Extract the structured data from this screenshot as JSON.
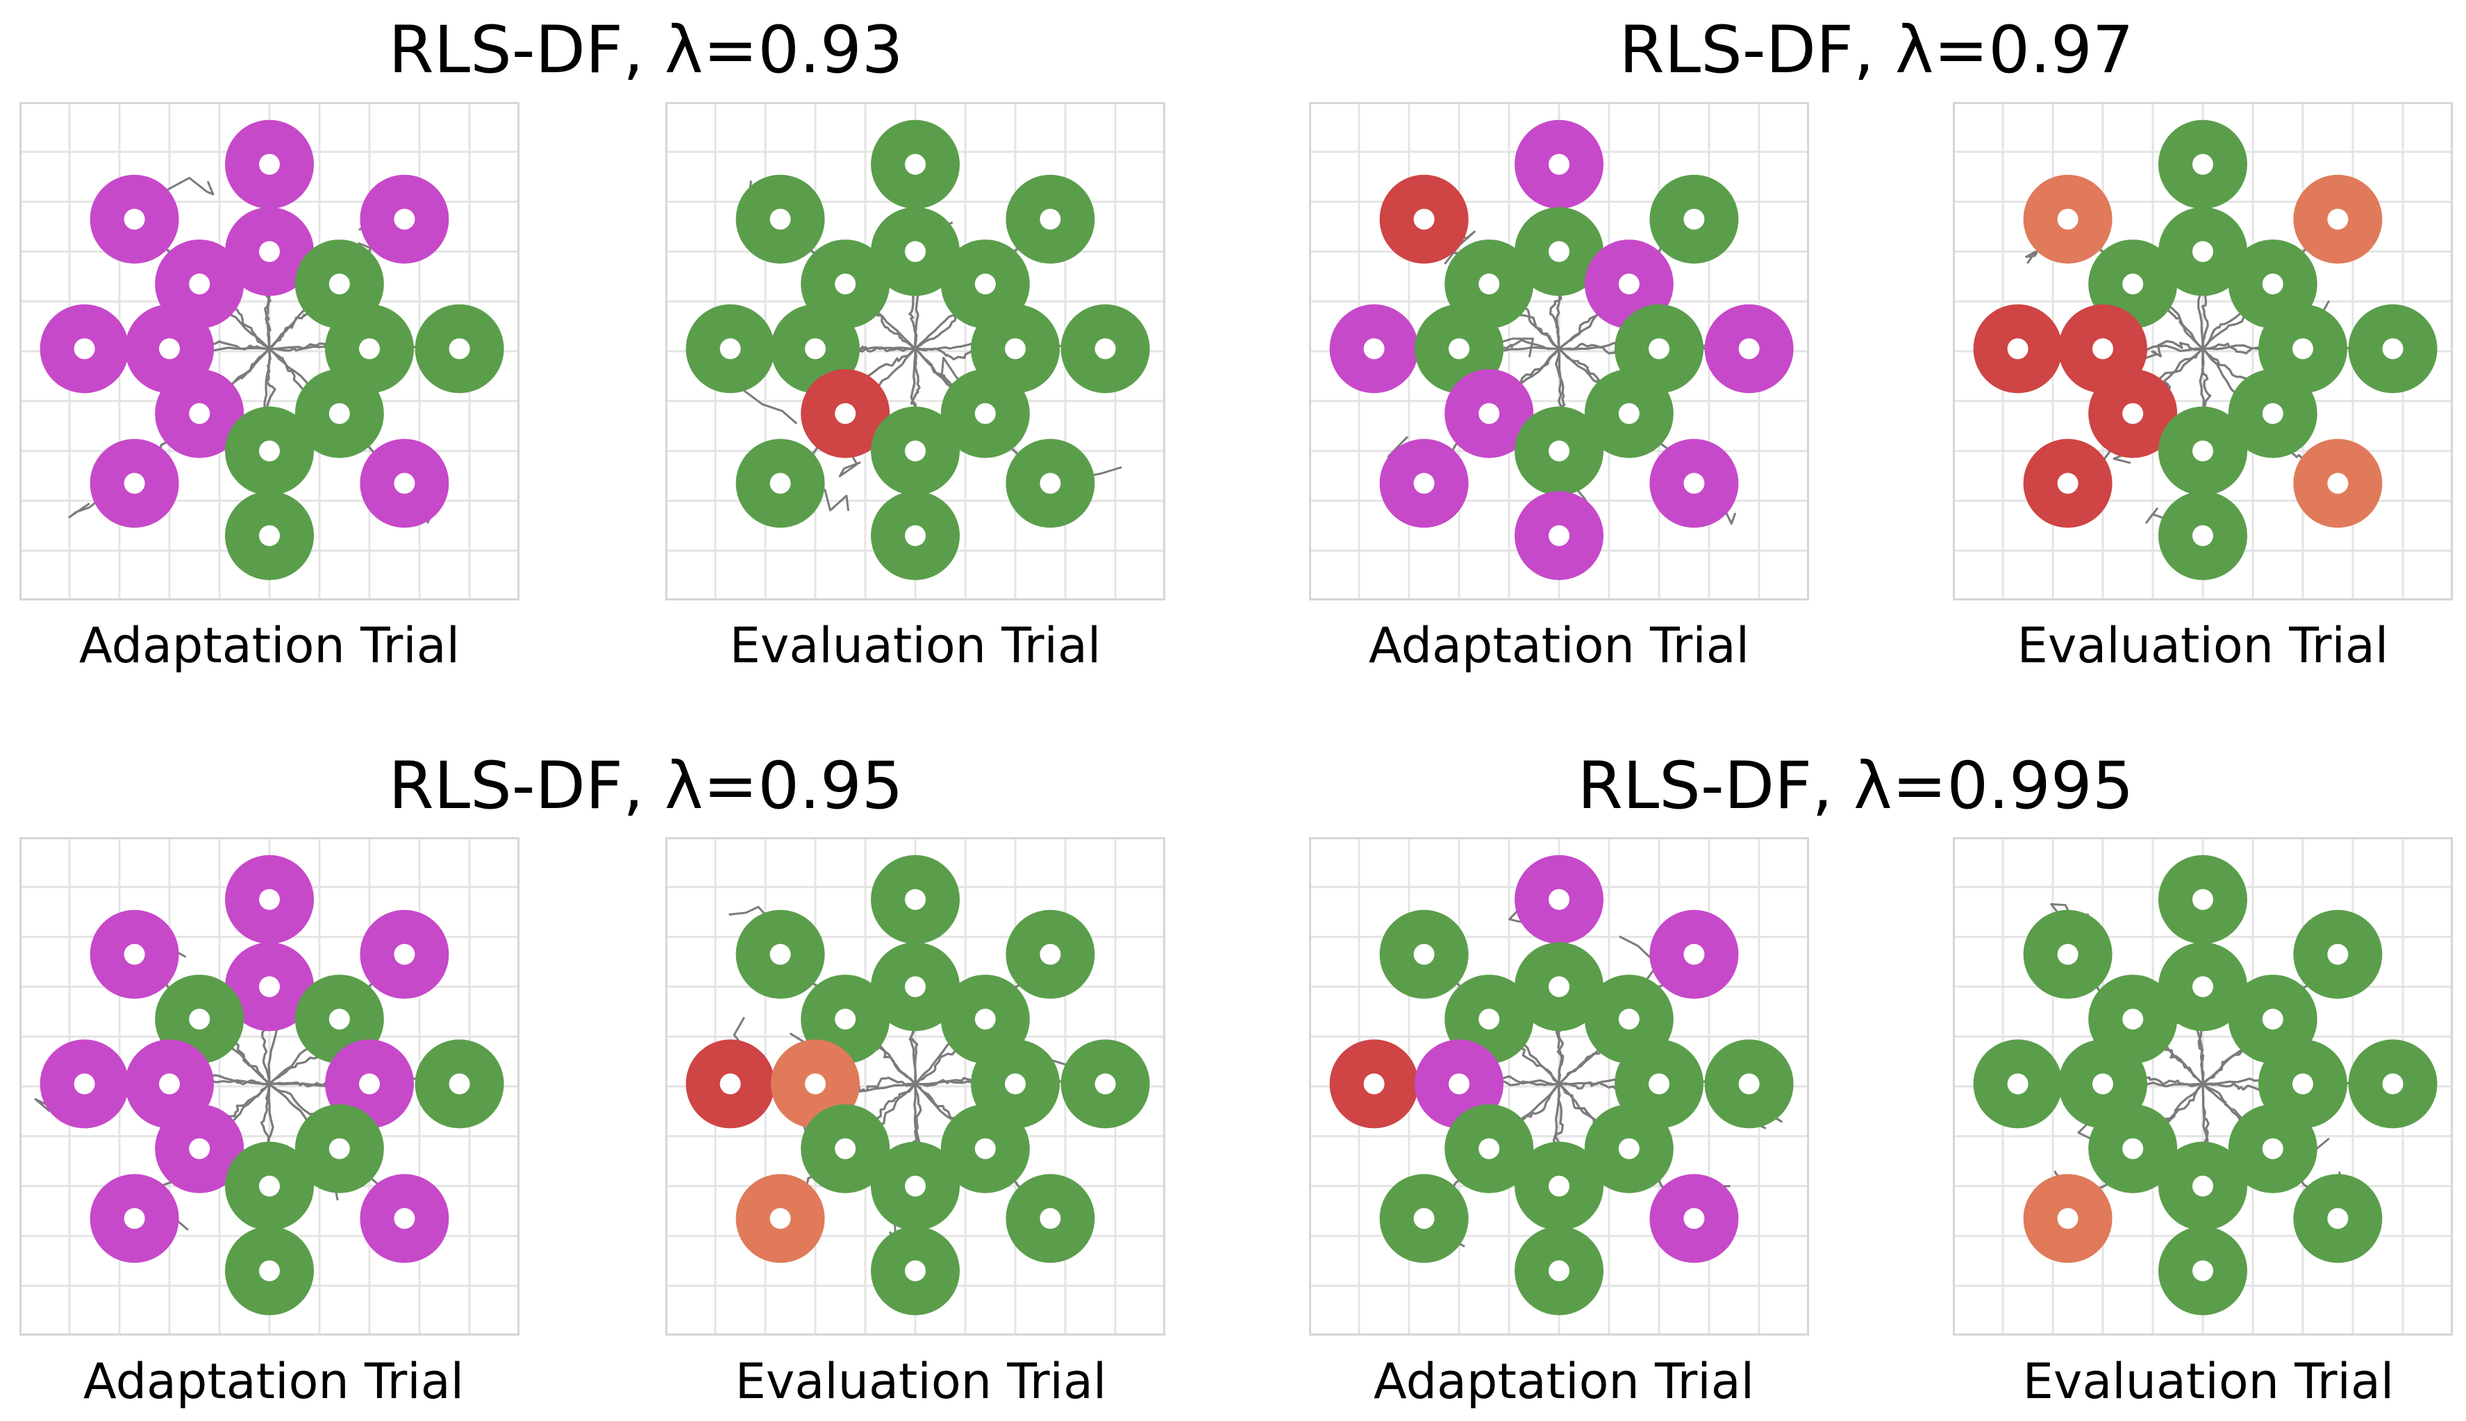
{
  "colors": {
    "grid": "#e4e4e4",
    "trajectory": "#7b7b7b",
    "success": "#5a9e4b",
    "adapt": "#c649c9",
    "fail": "#cf4444",
    "partial": "#e07a5a"
  },
  "chart_data": [
    {
      "type": "scatter",
      "title": "RLS-DF, λ=0.93",
      "panels": [
        {
          "label": "Adaptation Trial",
          "xlim": [
            0,
            1
          ],
          "ylim": [
            0,
            1
          ],
          "targets": [
            {
              "x": 0.5,
              "y": 0.875,
              "status": "adapt"
            },
            {
              "x": 0.23,
              "y": 0.765,
              "status": "adapt"
            },
            {
              "x": 0.77,
              "y": 0.765,
              "status": "adapt"
            },
            {
              "x": 0.5,
              "y": 0.7,
              "status": "adapt"
            },
            {
              "x": 0.36,
              "y": 0.635,
              "status": "adapt"
            },
            {
              "x": 0.64,
              "y": 0.635,
              "status": "success"
            },
            {
              "x": 0.13,
              "y": 0.505,
              "status": "adapt"
            },
            {
              "x": 0.3,
              "y": 0.505,
              "status": "adapt"
            },
            {
              "x": 0.7,
              "y": 0.505,
              "status": "success"
            },
            {
              "x": 0.88,
              "y": 0.505,
              "status": "success"
            },
            {
              "x": 0.36,
              "y": 0.375,
              "status": "adapt"
            },
            {
              "x": 0.64,
              "y": 0.375,
              "status": "success"
            },
            {
              "x": 0.5,
              "y": 0.3,
              "status": "success"
            },
            {
              "x": 0.23,
              "y": 0.235,
              "status": "adapt"
            },
            {
              "x": 0.77,
              "y": 0.235,
              "status": "adapt"
            },
            {
              "x": 0.5,
              "y": 0.13,
              "status": "success"
            }
          ]
        },
        {
          "label": "Evaluation Trial",
          "xlim": [
            0,
            1
          ],
          "ylim": [
            0,
            1
          ],
          "targets": [
            {
              "x": 0.5,
              "y": 0.875,
              "status": "success"
            },
            {
              "x": 0.23,
              "y": 0.765,
              "status": "success"
            },
            {
              "x": 0.77,
              "y": 0.765,
              "status": "success"
            },
            {
              "x": 0.5,
              "y": 0.7,
              "status": "success"
            },
            {
              "x": 0.36,
              "y": 0.635,
              "status": "success"
            },
            {
              "x": 0.64,
              "y": 0.635,
              "status": "success"
            },
            {
              "x": 0.13,
              "y": 0.505,
              "status": "success"
            },
            {
              "x": 0.3,
              "y": 0.505,
              "status": "success"
            },
            {
              "x": 0.7,
              "y": 0.505,
              "status": "success"
            },
            {
              "x": 0.88,
              "y": 0.505,
              "status": "success"
            },
            {
              "x": 0.36,
              "y": 0.375,
              "status": "fail"
            },
            {
              "x": 0.64,
              "y": 0.375,
              "status": "success"
            },
            {
              "x": 0.5,
              "y": 0.3,
              "status": "success"
            },
            {
              "x": 0.23,
              "y": 0.235,
              "status": "success"
            },
            {
              "x": 0.77,
              "y": 0.235,
              "status": "success"
            },
            {
              "x": 0.5,
              "y": 0.13,
              "status": "success"
            }
          ]
        }
      ]
    },
    {
      "type": "scatter",
      "title": "RLS-DF, λ=0.97",
      "panels": [
        {
          "label": "Adaptation Trial",
          "xlim": [
            0,
            1
          ],
          "ylim": [
            0,
            1
          ],
          "targets": [
            {
              "x": 0.5,
              "y": 0.875,
              "status": "adapt"
            },
            {
              "x": 0.23,
              "y": 0.765,
              "status": "fail"
            },
            {
              "x": 0.77,
              "y": 0.765,
              "status": "success"
            },
            {
              "x": 0.5,
              "y": 0.7,
              "status": "success"
            },
            {
              "x": 0.36,
              "y": 0.635,
              "status": "success"
            },
            {
              "x": 0.64,
              "y": 0.635,
              "status": "adapt"
            },
            {
              "x": 0.13,
              "y": 0.505,
              "status": "adapt"
            },
            {
              "x": 0.3,
              "y": 0.505,
              "status": "success"
            },
            {
              "x": 0.7,
              "y": 0.505,
              "status": "success"
            },
            {
              "x": 0.88,
              "y": 0.505,
              "status": "adapt"
            },
            {
              "x": 0.36,
              "y": 0.375,
              "status": "adapt"
            },
            {
              "x": 0.64,
              "y": 0.375,
              "status": "success"
            },
            {
              "x": 0.5,
              "y": 0.3,
              "status": "success"
            },
            {
              "x": 0.23,
              "y": 0.235,
              "status": "adapt"
            },
            {
              "x": 0.77,
              "y": 0.235,
              "status": "adapt"
            },
            {
              "x": 0.5,
              "y": 0.13,
              "status": "adapt"
            }
          ]
        },
        {
          "label": "Evaluation Trial",
          "xlim": [
            0,
            1
          ],
          "ylim": [
            0,
            1
          ],
          "targets": [
            {
              "x": 0.5,
              "y": 0.875,
              "status": "success"
            },
            {
              "x": 0.23,
              "y": 0.765,
              "status": "partial"
            },
            {
              "x": 0.77,
              "y": 0.765,
              "status": "partial"
            },
            {
              "x": 0.5,
              "y": 0.7,
              "status": "success"
            },
            {
              "x": 0.36,
              "y": 0.635,
              "status": "success"
            },
            {
              "x": 0.64,
              "y": 0.635,
              "status": "success"
            },
            {
              "x": 0.13,
              "y": 0.505,
              "status": "fail"
            },
            {
              "x": 0.3,
              "y": 0.505,
              "status": "fail"
            },
            {
              "x": 0.7,
              "y": 0.505,
              "status": "success"
            },
            {
              "x": 0.88,
              "y": 0.505,
              "status": "success"
            },
            {
              "x": 0.36,
              "y": 0.375,
              "status": "fail"
            },
            {
              "x": 0.64,
              "y": 0.375,
              "status": "success"
            },
            {
              "x": 0.5,
              "y": 0.3,
              "status": "success"
            },
            {
              "x": 0.23,
              "y": 0.235,
              "status": "fail"
            },
            {
              "x": 0.77,
              "y": 0.235,
              "status": "partial"
            },
            {
              "x": 0.5,
              "y": 0.13,
              "status": "success"
            }
          ]
        }
      ]
    },
    {
      "type": "scatter",
      "title": "RLS-DF, λ=0.95",
      "panels": [
        {
          "label": "Adaptation Trial",
          "xlim": [
            0,
            1
          ],
          "ylim": [
            0,
            1
          ],
          "targets": [
            {
              "x": 0.5,
              "y": 0.875,
              "status": "adapt"
            },
            {
              "x": 0.23,
              "y": 0.765,
              "status": "adapt"
            },
            {
              "x": 0.77,
              "y": 0.765,
              "status": "adapt"
            },
            {
              "x": 0.5,
              "y": 0.7,
              "status": "adapt"
            },
            {
              "x": 0.36,
              "y": 0.635,
              "status": "success"
            },
            {
              "x": 0.64,
              "y": 0.635,
              "status": "success"
            },
            {
              "x": 0.13,
              "y": 0.505,
              "status": "adapt"
            },
            {
              "x": 0.3,
              "y": 0.505,
              "status": "adapt"
            },
            {
              "x": 0.7,
              "y": 0.505,
              "status": "adapt"
            },
            {
              "x": 0.88,
              "y": 0.505,
              "status": "success"
            },
            {
              "x": 0.36,
              "y": 0.375,
              "status": "adapt"
            },
            {
              "x": 0.64,
              "y": 0.375,
              "status": "success"
            },
            {
              "x": 0.5,
              "y": 0.3,
              "status": "success"
            },
            {
              "x": 0.23,
              "y": 0.235,
              "status": "adapt"
            },
            {
              "x": 0.77,
              "y": 0.235,
              "status": "adapt"
            },
            {
              "x": 0.5,
              "y": 0.13,
              "status": "success"
            }
          ]
        },
        {
          "label": "Evaluation Trial",
          "xlim": [
            0,
            1
          ],
          "ylim": [
            0,
            1
          ],
          "targets": [
            {
              "x": 0.5,
              "y": 0.875,
              "status": "success"
            },
            {
              "x": 0.23,
              "y": 0.765,
              "status": "success"
            },
            {
              "x": 0.77,
              "y": 0.765,
              "status": "success"
            },
            {
              "x": 0.5,
              "y": 0.7,
              "status": "success"
            },
            {
              "x": 0.36,
              "y": 0.635,
              "status": "success"
            },
            {
              "x": 0.64,
              "y": 0.635,
              "status": "success"
            },
            {
              "x": 0.13,
              "y": 0.505,
              "status": "fail"
            },
            {
              "x": 0.3,
              "y": 0.505,
              "status": "partial"
            },
            {
              "x": 0.7,
              "y": 0.505,
              "status": "success"
            },
            {
              "x": 0.88,
              "y": 0.505,
              "status": "success"
            },
            {
              "x": 0.36,
              "y": 0.375,
              "status": "success"
            },
            {
              "x": 0.64,
              "y": 0.375,
              "status": "success"
            },
            {
              "x": 0.5,
              "y": 0.3,
              "status": "success"
            },
            {
              "x": 0.23,
              "y": 0.235,
              "status": "partial"
            },
            {
              "x": 0.77,
              "y": 0.235,
              "status": "success"
            },
            {
              "x": 0.5,
              "y": 0.13,
              "status": "success"
            }
          ]
        }
      ]
    },
    {
      "type": "scatter",
      "title": "RLS-DF, λ=0.995",
      "panels": [
        {
          "label": "Adaptation Trial",
          "xlim": [
            0,
            1
          ],
          "ylim": [
            0,
            1
          ],
          "targets": [
            {
              "x": 0.5,
              "y": 0.875,
              "status": "adapt"
            },
            {
              "x": 0.23,
              "y": 0.765,
              "status": "success"
            },
            {
              "x": 0.77,
              "y": 0.765,
              "status": "adapt"
            },
            {
              "x": 0.5,
              "y": 0.7,
              "status": "success"
            },
            {
              "x": 0.36,
              "y": 0.635,
              "status": "success"
            },
            {
              "x": 0.64,
              "y": 0.635,
              "status": "success"
            },
            {
              "x": 0.13,
              "y": 0.505,
              "status": "fail"
            },
            {
              "x": 0.3,
              "y": 0.505,
              "status": "adapt"
            },
            {
              "x": 0.7,
              "y": 0.505,
              "status": "success"
            },
            {
              "x": 0.88,
              "y": 0.505,
              "status": "success"
            },
            {
              "x": 0.36,
              "y": 0.375,
              "status": "success"
            },
            {
              "x": 0.64,
              "y": 0.375,
              "status": "success"
            },
            {
              "x": 0.5,
              "y": 0.3,
              "status": "success"
            },
            {
              "x": 0.23,
              "y": 0.235,
              "status": "success"
            },
            {
              "x": 0.77,
              "y": 0.235,
              "status": "adapt"
            },
            {
              "x": 0.5,
              "y": 0.13,
              "status": "success"
            }
          ]
        },
        {
          "label": "Evaluation Trial",
          "xlim": [
            0,
            1
          ],
          "ylim": [
            0,
            1
          ],
          "targets": [
            {
              "x": 0.5,
              "y": 0.875,
              "status": "success"
            },
            {
              "x": 0.23,
              "y": 0.765,
              "status": "success"
            },
            {
              "x": 0.77,
              "y": 0.765,
              "status": "success"
            },
            {
              "x": 0.5,
              "y": 0.7,
              "status": "success"
            },
            {
              "x": 0.36,
              "y": 0.635,
              "status": "success"
            },
            {
              "x": 0.64,
              "y": 0.635,
              "status": "success"
            },
            {
              "x": 0.13,
              "y": 0.505,
              "status": "success"
            },
            {
              "x": 0.3,
              "y": 0.505,
              "status": "success"
            },
            {
              "x": 0.7,
              "y": 0.505,
              "status": "success"
            },
            {
              "x": 0.88,
              "y": 0.505,
              "status": "success"
            },
            {
              "x": 0.36,
              "y": 0.375,
              "status": "success"
            },
            {
              "x": 0.64,
              "y": 0.375,
              "status": "success"
            },
            {
              "x": 0.5,
              "y": 0.3,
              "status": "success"
            },
            {
              "x": 0.23,
              "y": 0.235,
              "status": "partial"
            },
            {
              "x": 0.77,
              "y": 0.235,
              "status": "success"
            },
            {
              "x": 0.5,
              "y": 0.13,
              "status": "success"
            }
          ]
        }
      ]
    }
  ]
}
